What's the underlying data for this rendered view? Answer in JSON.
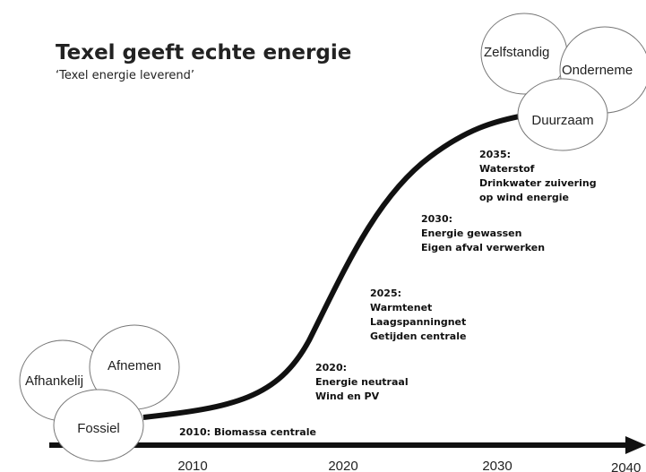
{
  "header": {
    "title": "Texel geeft echte energie",
    "subtitle": "‘Texel energie leverend’"
  },
  "start_states": [
    "Afhankelij",
    "Afnemen",
    "Fossiel"
  ],
  "end_states": [
    "Zelfstandig",
    "Onderneme",
    "Duurzaam"
  ],
  "axis_labels": [
    "2010",
    "2020",
    "2030",
    "2040"
  ],
  "milestones": [
    {
      "lines": [
        "2010: Biomassa centrale"
      ]
    },
    {
      "lines": [
        "2020:",
        "Energie neutraal",
        "Wind en PV"
      ]
    },
    {
      "lines": [
        "2025:",
        "Warmtenet",
        "Laagspanningnet",
        "Getijden centrale"
      ]
    },
    {
      "lines": [
        "2030:",
        "Energie gewassen",
        "Eigen afval verwerken"
      ]
    },
    {
      "lines": [
        "2035:",
        "Waterstof",
        "Drinkwater zuivering",
        "op wind energie"
      ]
    }
  ]
}
